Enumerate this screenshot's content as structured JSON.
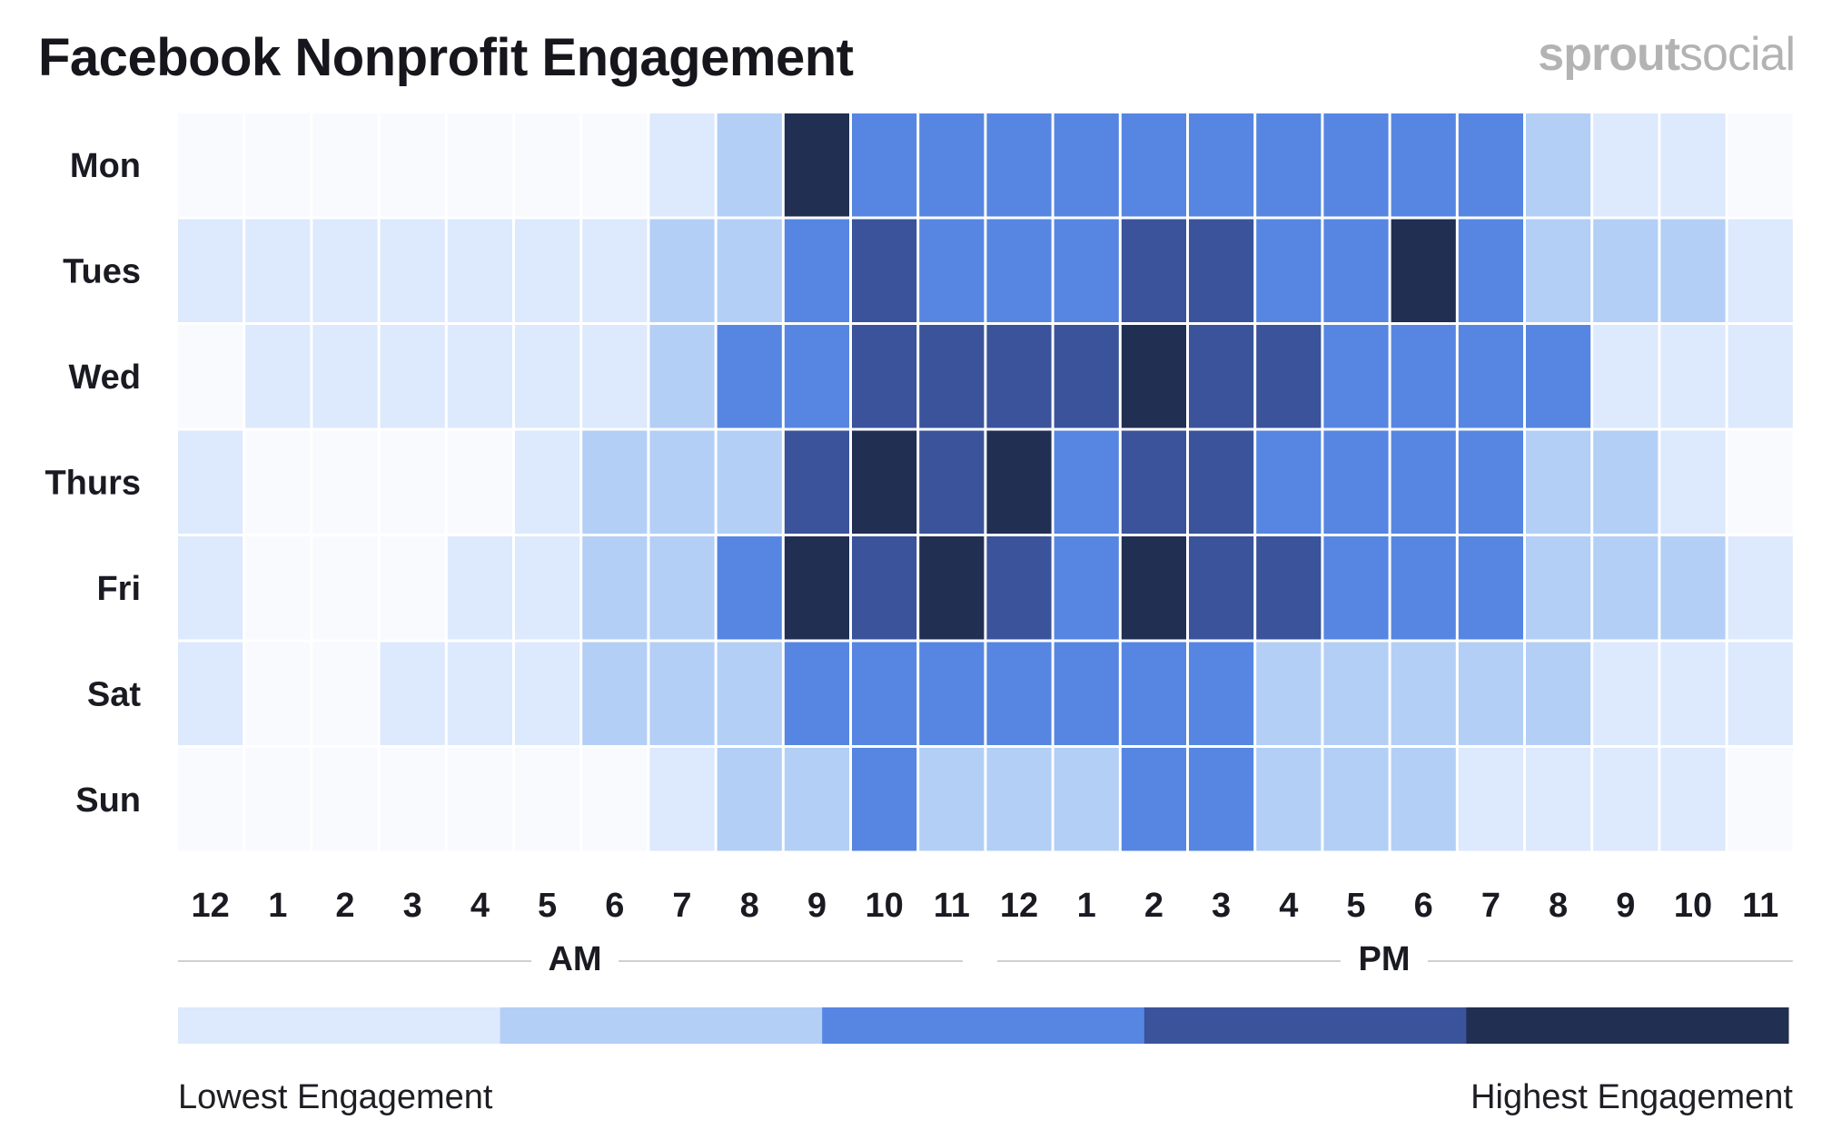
{
  "title": "Facebook Nonprofit Engagement",
  "brand": {
    "part1": "sprout",
    "part2": "social"
  },
  "chart_data": {
    "type": "heatmap",
    "title": "Facebook Nonprofit Engagement",
    "rows": [
      "Mon",
      "Tues",
      "Wed",
      "Thurs",
      "Fri",
      "Sat",
      "Sun"
    ],
    "columns": [
      "12",
      "1",
      "2",
      "3",
      "4",
      "5",
      "6",
      "7",
      "8",
      "9",
      "10",
      "11",
      "12",
      "1",
      "2",
      "3",
      "4",
      "5",
      "6",
      "7",
      "8",
      "9",
      "10",
      "11"
    ],
    "period_labels": [
      "AM",
      "PM"
    ],
    "legend": {
      "low_label": "Lowest Engagement",
      "high_label": "Highest Engagement",
      "levels": 5
    },
    "colors": [
      "#f8fafe",
      "#dde9fc",
      "#b3cff6",
      "#5686e2",
      "#3a539a",
      "#202f52"
    ],
    "values": [
      [
        0,
        0,
        0,
        0,
        0,
        0,
        0,
        1,
        2,
        5,
        3,
        3,
        3,
        3,
        3,
        3,
        3,
        3,
        3,
        3,
        2,
        1,
        1,
        0
      ],
      [
        1,
        1,
        1,
        1,
        1,
        1,
        1,
        2,
        2,
        3,
        4,
        3,
        3,
        3,
        4,
        4,
        3,
        3,
        5,
        3,
        2,
        2,
        2,
        1
      ],
      [
        0,
        1,
        1,
        1,
        1,
        1,
        1,
        2,
        3,
        3,
        4,
        4,
        4,
        4,
        5,
        4,
        4,
        3,
        3,
        3,
        3,
        1,
        1,
        1
      ],
      [
        1,
        0,
        0,
        0,
        0,
        1,
        2,
        2,
        2,
        4,
        5,
        4,
        5,
        3,
        4,
        4,
        3,
        3,
        3,
        3,
        2,
        2,
        1,
        0
      ],
      [
        1,
        0,
        0,
        0,
        1,
        1,
        2,
        2,
        3,
        5,
        4,
        5,
        4,
        3,
        5,
        4,
        4,
        3,
        3,
        3,
        2,
        2,
        2,
        1
      ],
      [
        1,
        0,
        0,
        1,
        1,
        1,
        2,
        2,
        2,
        3,
        3,
        3,
        3,
        3,
        3,
        3,
        2,
        2,
        2,
        2,
        2,
        1,
        1,
        1
      ],
      [
        0,
        0,
        0,
        0,
        0,
        0,
        0,
        1,
        2,
        2,
        3,
        2,
        2,
        2,
        3,
        3,
        2,
        2,
        2,
        1,
        1,
        1,
        1,
        0
      ]
    ]
  },
  "footer": {
    "lowest": "Lowest Engagement",
    "highest": "Highest Engagement"
  }
}
